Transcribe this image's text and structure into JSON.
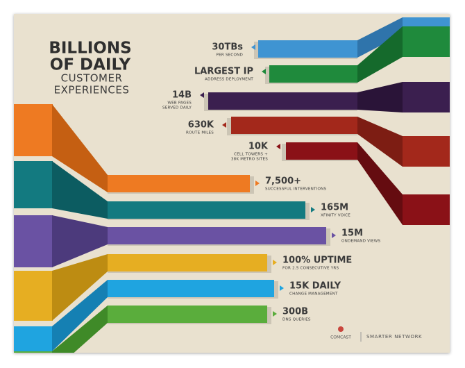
{
  "title": {
    "lines": [
      "BILLIONS",
      "OF DAILY",
      "CUSTOMER",
      "EXPERIENCES"
    ]
  },
  "stats": [
    {
      "value": "30TBs",
      "caption": [
        "PER SECOND"
      ]
    },
    {
      "value": "LARGEST IP",
      "caption": [
        "ADDRESS DEPLOYMENT"
      ]
    },
    {
      "value": "14B",
      "caption": [
        "WEB PAGES",
        "SERVED DAILY"
      ]
    },
    {
      "value": "630K",
      "caption": [
        "ROUTE MILES"
      ]
    },
    {
      "value": "10K",
      "caption": [
        "CELL TOWERS +",
        "38K METRO SITES"
      ]
    },
    {
      "value": "7,500+",
      "caption": [
        "SUCCESSFUL INTERVENTIONS"
      ]
    },
    {
      "value": "165M",
      "caption": [
        "XFINITY VOICE"
      ]
    },
    {
      "value": "15M",
      "caption": [
        "ONDEMAND VIEWS"
      ]
    },
    {
      "value": "100% UPTIME",
      "caption": [
        "FOR 2.5 CONSECUTIVE YRS"
      ]
    },
    {
      "value": "15K DAILY",
      "caption": [
        "CHANGE MANAGEMENT"
      ]
    },
    {
      "value": "300B",
      "caption": [
        "DNS QUERIES"
      ]
    }
  ],
  "footer": {
    "brand": "COMCAST",
    "tagline": "SMARTER NETWORK"
  }
}
